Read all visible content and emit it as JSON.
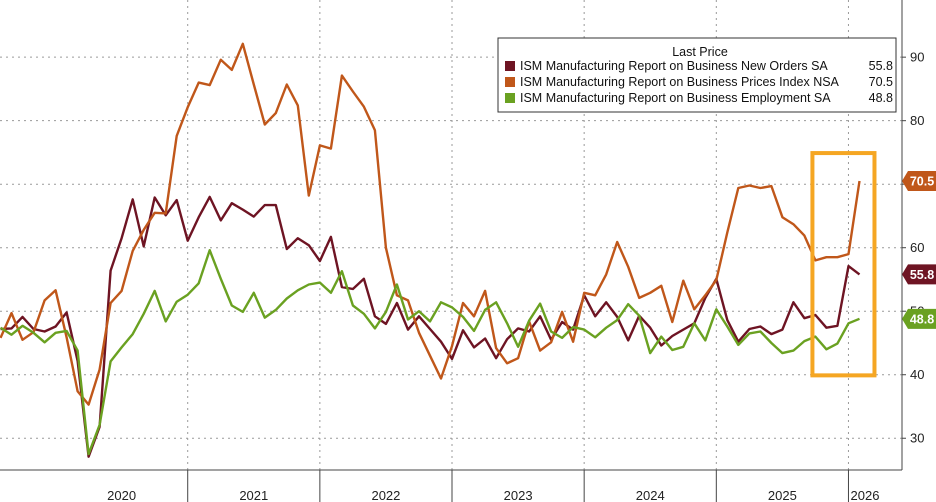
{
  "chart_data": {
    "type": "line",
    "legend": {
      "title": "Last Price",
      "placement": "top-right"
    },
    "y_ticks": [
      30,
      40,
      50,
      60,
      70,
      80,
      90
    ],
    "ylim": [
      25,
      99
    ],
    "x_range": [
      "2019-08",
      "2026-04"
    ],
    "x_tick_labels": [
      "2020",
      "2021",
      "2022",
      "2023",
      "2024",
      "2025",
      "2026"
    ],
    "highlight_box": {
      "color": "#f5a623",
      "x_range": [
        "2025-10",
        "2026-02"
      ],
      "y_range": [
        39.9,
        74.9
      ]
    },
    "series": [
      {
        "name": "ISM Manufacturing Report on Business New Orders SA",
        "last": "55.8",
        "color": "#6e1423",
        "x": [
          "2019-08",
          "2019-09",
          "2019-10",
          "2019-11",
          "2019-12",
          "2020-01",
          "2020-02",
          "2020-03",
          "2020-04",
          "2020-05",
          "2020-06",
          "2020-07",
          "2020-08",
          "2020-09",
          "2020-10",
          "2020-11",
          "2020-12",
          "2021-01",
          "2021-02",
          "2021-03",
          "2021-04",
          "2021-05",
          "2021-06",
          "2021-07",
          "2021-08",
          "2021-09",
          "2021-10",
          "2021-11",
          "2021-12",
          "2022-01",
          "2022-02",
          "2022-03",
          "2022-04",
          "2022-05",
          "2022-06",
          "2022-07",
          "2022-08",
          "2022-09",
          "2022-10",
          "2022-11",
          "2022-12",
          "2023-01",
          "2023-02",
          "2023-03",
          "2023-04",
          "2023-05",
          "2023-06",
          "2023-07",
          "2023-08",
          "2023-09",
          "2023-10",
          "2023-11",
          "2023-12",
          "2024-01",
          "2024-02",
          "2024-03",
          "2024-04",
          "2024-05",
          "2024-06",
          "2024-07",
          "2024-08",
          "2024-09",
          "2024-10",
          "2024-11",
          "2024-12",
          "2025-01",
          "2025-02",
          "2025-03",
          "2025-04",
          "2025-05",
          "2025-06",
          "2025-07",
          "2025-08",
          "2025-09",
          "2025-10",
          "2025-11",
          "2025-12",
          "2026-01",
          "2026-02"
        ],
        "values": [
          47.2,
          47.3,
          49.1,
          47.2,
          46.8,
          47.6,
          49.8,
          42.2,
          27.1,
          31.8,
          56.4,
          61.5,
          67.6,
          60.2,
          67.9,
          65.1,
          67.5,
          61.1,
          64.8,
          68.0,
          64.3,
          67.0,
          66.0,
          64.9,
          66.7,
          66.7,
          59.8,
          61.5,
          60.4,
          57.9,
          61.7,
          53.8,
          53.5,
          55.1,
          49.2,
          48.0,
          51.3,
          47.1,
          49.2,
          47.2,
          45.2,
          42.5,
          47.0,
          44.3,
          45.7,
          42.6,
          45.6,
          47.3,
          46.8,
          49.2,
          45.5,
          48.3,
          47.1,
          52.5,
          49.2,
          51.4,
          49.1,
          45.4,
          49.3,
          47.4,
          44.6,
          46.1,
          47.1,
          48.1,
          52.1,
          55.1,
          48.6,
          45.2,
          47.2,
          47.6,
          46.4,
          47.1,
          51.4,
          48.9,
          49.4,
          47.4,
          47.7,
          57.1,
          55.8
        ]
      },
      {
        "name": "ISM Manufacturing Report on Business Prices Index NSA",
        "last": "70.5",
        "color": "#c0571a",
        "x": [
          "2019-08",
          "2019-09",
          "2019-10",
          "2019-11",
          "2019-12",
          "2020-01",
          "2020-02",
          "2020-03",
          "2020-04",
          "2020-05",
          "2020-06",
          "2020-07",
          "2020-08",
          "2020-09",
          "2020-10",
          "2020-11",
          "2020-12",
          "2021-01",
          "2021-02",
          "2021-03",
          "2021-04",
          "2021-05",
          "2021-06",
          "2021-07",
          "2021-08",
          "2021-09",
          "2021-10",
          "2021-11",
          "2021-12",
          "2022-01",
          "2022-02",
          "2022-03",
          "2022-04",
          "2022-05",
          "2022-06",
          "2022-07",
          "2022-08",
          "2022-09",
          "2022-10",
          "2022-11",
          "2022-12",
          "2023-01",
          "2023-02",
          "2023-03",
          "2023-04",
          "2023-05",
          "2023-06",
          "2023-07",
          "2023-08",
          "2023-09",
          "2023-10",
          "2023-11",
          "2023-12",
          "2024-01",
          "2024-02",
          "2024-03",
          "2024-04",
          "2024-05",
          "2024-06",
          "2024-07",
          "2024-08",
          "2024-09",
          "2024-10",
          "2024-11",
          "2024-12",
          "2025-01",
          "2025-02",
          "2025-03",
          "2025-04",
          "2025-05",
          "2025-06",
          "2025-07",
          "2025-08",
          "2025-09",
          "2025-10",
          "2025-11",
          "2025-12",
          "2026-01",
          "2026-02"
        ],
        "values": [
          45.8,
          49.7,
          45.5,
          46.7,
          51.7,
          53.3,
          45.9,
          37.4,
          35.3,
          40.8,
          51.3,
          53.2,
          59.5,
          62.8,
          65.5,
          65.4,
          77.6,
          82.1,
          86.0,
          85.6,
          89.6,
          88.0,
          92.1,
          85.7,
          79.4,
          81.2,
          85.7,
          82.4,
          68.2,
          76.1,
          75.6,
          87.1,
          84.6,
          82.2,
          78.5,
          60.0,
          52.5,
          51.7,
          46.6,
          43.0,
          39.4,
          44.5,
          51.3,
          49.2,
          53.2,
          44.2,
          41.8,
          42.6,
          48.4,
          43.8,
          45.1,
          49.9,
          45.2,
          52.9,
          52.5,
          55.8,
          60.9,
          57.0,
          52.1,
          52.9,
          54.0,
          48.3,
          54.8,
          50.3,
          52.5,
          54.9,
          62.4,
          69.4,
          69.8,
          69.4,
          69.7,
          64.8,
          63.7,
          61.9,
          58.0,
          58.5,
          58.5,
          59.0,
          70.5
        ]
      },
      {
        "name": "ISM Manufacturing Report on Business Employment SA",
        "last": "48.8",
        "color": "#6aa121",
        "x": [
          "2019-08",
          "2019-09",
          "2019-10",
          "2019-11",
          "2019-12",
          "2020-01",
          "2020-02",
          "2020-03",
          "2020-04",
          "2020-05",
          "2020-06",
          "2020-07",
          "2020-08",
          "2020-09",
          "2020-10",
          "2020-11",
          "2020-12",
          "2021-01",
          "2021-02",
          "2021-03",
          "2021-04",
          "2021-05",
          "2021-06",
          "2021-07",
          "2021-08",
          "2021-09",
          "2021-10",
          "2021-11",
          "2021-12",
          "2022-01",
          "2022-02",
          "2022-03",
          "2022-04",
          "2022-05",
          "2022-06",
          "2022-07",
          "2022-08",
          "2022-09",
          "2022-10",
          "2022-11",
          "2022-12",
          "2023-01",
          "2023-02",
          "2023-03",
          "2023-04",
          "2023-05",
          "2023-06",
          "2023-07",
          "2023-08",
          "2023-09",
          "2023-10",
          "2023-11",
          "2023-12",
          "2024-01",
          "2024-02",
          "2024-03",
          "2024-04",
          "2024-05",
          "2024-06",
          "2024-07",
          "2024-08",
          "2024-09",
          "2024-10",
          "2024-11",
          "2024-12",
          "2025-01",
          "2025-02",
          "2025-03",
          "2025-04",
          "2025-05",
          "2025-06",
          "2025-07",
          "2025-08",
          "2025-09",
          "2025-10",
          "2025-11",
          "2025-12",
          "2026-01",
          "2026-02"
        ],
        "values": [
          47.4,
          46.3,
          47.7,
          46.6,
          45.1,
          46.6,
          46.9,
          43.8,
          27.5,
          32.1,
          42.1,
          44.3,
          46.4,
          49.6,
          53.2,
          48.4,
          51.5,
          52.6,
          54.4,
          59.6,
          55.1,
          50.9,
          49.9,
          52.9,
          49.0,
          50.2,
          52.0,
          53.3,
          54.2,
          54.5,
          52.9,
          56.3,
          50.9,
          49.6,
          47.3,
          49.9,
          54.2,
          48.7,
          50.0,
          48.4,
          51.4,
          50.6,
          49.1,
          46.9,
          50.2,
          51.4,
          48.1,
          44.4,
          48.5,
          51.2,
          46.8,
          45.8,
          47.5,
          47.1,
          45.9,
          47.4,
          48.6,
          51.1,
          49.3,
          43.4,
          46.0,
          43.9,
          44.4,
          48.1,
          45.4,
          50.3,
          47.6,
          44.7,
          46.5,
          46.8,
          45.0,
          43.4,
          43.8,
          45.3,
          46.0,
          44.0,
          44.9,
          48.1,
          48.8
        ]
      }
    ]
  }
}
